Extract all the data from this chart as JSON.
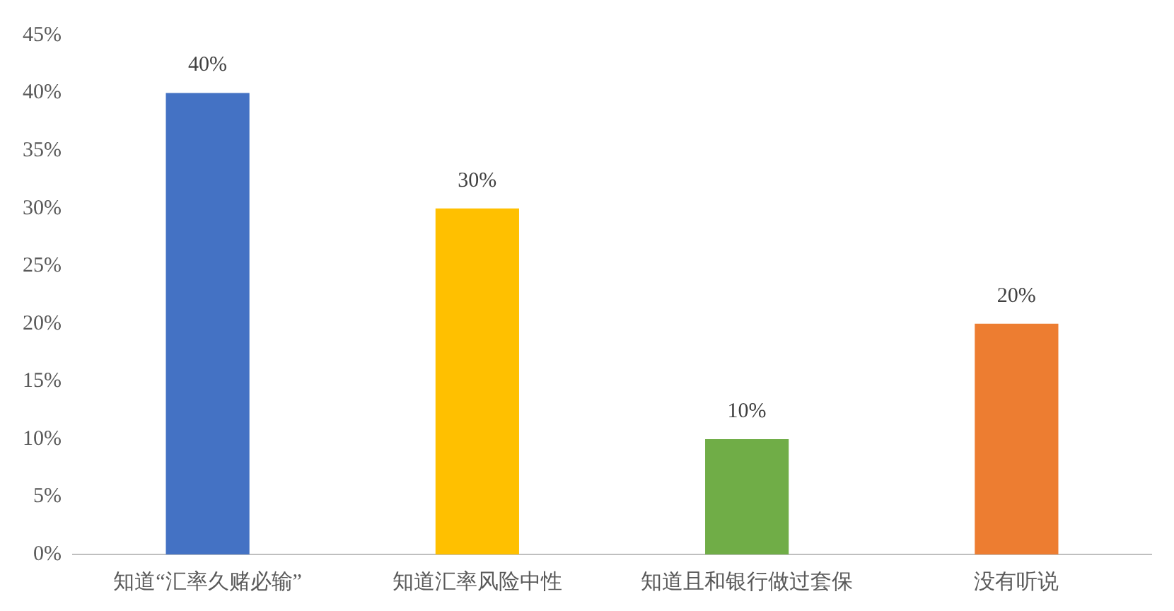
{
  "chart_data": {
    "type": "bar",
    "categories": [
      "知道“汇率久赌必输”",
      "知道汇率风险中性",
      "知道且和银行做过套保",
      "没有听说"
    ],
    "values": [
      40,
      30,
      10,
      20
    ],
    "colors": [
      "#4472c4",
      "#ffc000",
      "#70ad47",
      "#ed7d31"
    ],
    "value_labels": [
      "40%",
      "30%",
      "10%",
      "20%"
    ],
    "ylim": [
      0,
      45
    ],
    "yticks": [
      {
        "value": 0,
        "label": "0%"
      },
      {
        "value": 5,
        "label": "5%"
      },
      {
        "value": 10,
        "label": "10%"
      },
      {
        "value": 15,
        "label": "15%"
      },
      {
        "value": 20,
        "label": "20%"
      },
      {
        "value": 25,
        "label": "25%"
      },
      {
        "value": 30,
        "label": "30%"
      },
      {
        "value": 35,
        "label": "35%"
      },
      {
        "value": 40,
        "label": "40%"
      },
      {
        "value": 45,
        "label": "45%"
      }
    ]
  }
}
